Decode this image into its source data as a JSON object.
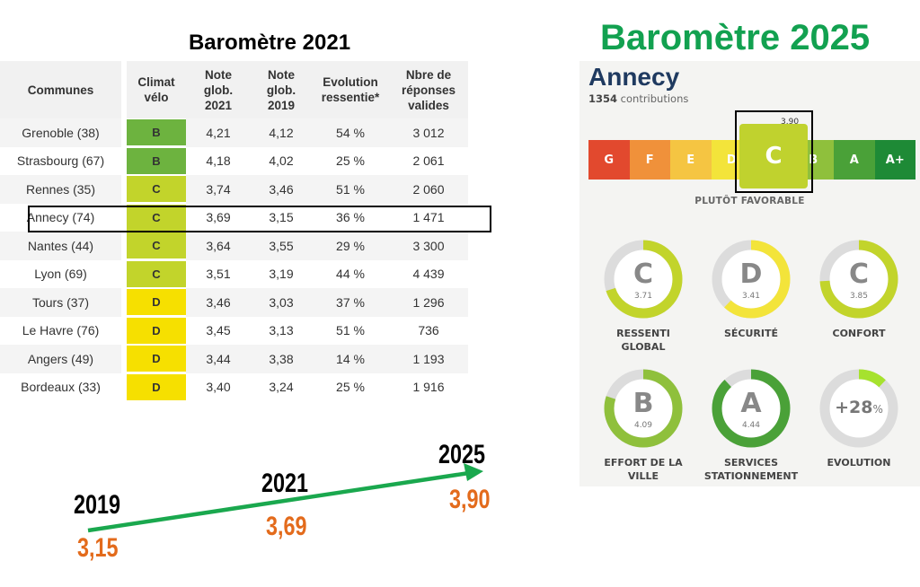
{
  "left": {
    "title": "Baromètre 2021",
    "headers": {
      "communes": "Communes",
      "climat": "Climat\nvélo",
      "note2021": "Note\nglob.\n2021",
      "note2019": "Note\nglob.\n2019",
      "evolution": "Evolution\nressentie*",
      "reponses": "Nbre de\nréponses\nvalides"
    },
    "rows": [
      {
        "commune": "Grenoble (38)",
        "grade": "B",
        "note2021": "4,21",
        "note2019": "4,12",
        "evolution": "54 %",
        "reponses": "3 012"
      },
      {
        "commune": "Strasbourg (67)",
        "grade": "B",
        "note2021": "4,18",
        "note2019": "4,02",
        "evolution": "25 %",
        "reponses": "2 061"
      },
      {
        "commune": "Rennes (35)",
        "grade": "C",
        "note2021": "3,74",
        "note2019": "3,46",
        "evolution": "51 %",
        "reponses": "2 060"
      },
      {
        "commune": "Annecy (74)",
        "grade": "C",
        "note2021": "3,69",
        "note2019": "3,15",
        "evolution": "36 %",
        "reponses": "1 471"
      },
      {
        "commune": "Nantes (44)",
        "grade": "C",
        "note2021": "3,64",
        "note2019": "3,55",
        "evolution": "29 %",
        "reponses": "3 300"
      },
      {
        "commune": "Lyon (69)",
        "grade": "C",
        "note2021": "3,51",
        "note2019": "3,19",
        "evolution": "44 %",
        "reponses": "4 439"
      },
      {
        "commune": "Tours (37)",
        "grade": "D",
        "note2021": "3,46",
        "note2019": "3,03",
        "evolution": "37 %",
        "reponses": "1 296"
      },
      {
        "commune": "Le Havre (76)",
        "grade": "D",
        "note2021": "3,45",
        "note2019": "3,13",
        "evolution": "51 %",
        "reponses": "736"
      },
      {
        "commune": "Angers (49)",
        "grade": "D",
        "note2021": "3,44",
        "note2019": "3,38",
        "evolution": "14 %",
        "reponses": "1 193"
      },
      {
        "commune": "Bordeaux (33)",
        "grade": "D",
        "note2021": "3,40",
        "note2019": "3,24",
        "evolution": "25 %",
        "reponses": "1 916"
      }
    ],
    "grade_colors": {
      "B": "#6db33f",
      "C": "#c2d42b",
      "D": "#f6e000"
    }
  },
  "trend": {
    "arrow_color": "#1aa84e",
    "points": [
      {
        "year": "2019",
        "value": "3,15"
      },
      {
        "year": "2021",
        "value": "3,69"
      },
      {
        "year": "2025",
        "value": "3,90"
      }
    ]
  },
  "right": {
    "title": "Baromètre 2025",
    "city": "Annecy",
    "contributions_count": "1354",
    "contributions_label": "contributions",
    "scale": [
      {
        "grade": "G",
        "color": "#e2492e"
      },
      {
        "grade": "F",
        "color": "#f0913a"
      },
      {
        "grade": "E",
        "color": "#f5c542"
      },
      {
        "grade": "D",
        "color": "#f3e43a"
      },
      {
        "grade": "C",
        "color": "#c0d22e"
      },
      {
        "grade": "B",
        "color": "#8fc03c"
      },
      {
        "grade": "A",
        "color": "#4aa138"
      },
      {
        "grade": "A+",
        "color": "#1e8a36"
      }
    ],
    "current": {
      "grade": "C",
      "score": "3.90",
      "mention": "PLUTÔT FAVORABLE"
    },
    "gauges": [
      {
        "letter": "C",
        "score": "3.71",
        "label": "RESSENTI\nGLOBAL",
        "fraction": 0.7,
        "color": "#c2d42b"
      },
      {
        "letter": "D",
        "score": "3.41",
        "label": "SÉCURITÉ",
        "fraction": 0.62,
        "color": "#f3e43a"
      },
      {
        "letter": "C",
        "score": "3.85",
        "label": "CONFORT",
        "fraction": 0.74,
        "color": "#c2d42b"
      },
      {
        "letter": "B",
        "score": "4.09",
        "label": "EFFORT DE LA\nVILLE",
        "fraction": 0.8,
        "color": "#8fc03c"
      },
      {
        "letter": "A",
        "score": "4.44",
        "label": "SERVICES\nSTATIONNEMENT",
        "fraction": 0.88,
        "color": "#4aa138"
      },
      {
        "pct": "+28",
        "pct_unit": "%",
        "label": "EVOLUTION",
        "fraction": 0.12,
        "color": "#a6e22e"
      }
    ]
  }
}
